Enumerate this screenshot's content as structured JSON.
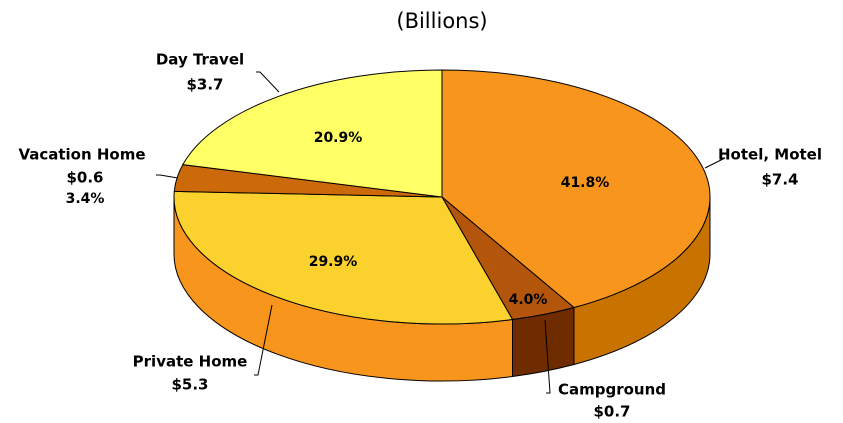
{
  "chart_data": {
    "type": "pie3d",
    "subtitle": "(Billions)",
    "categories": [
      "Hotel, Motel",
      "Campground",
      "Private Home",
      "Vacation Home",
      "Day Travel"
    ],
    "values": [
      7.4,
      0.7,
      5.3,
      0.6,
      3.7
    ],
    "value_labels": [
      "$7.4",
      "$0.7",
      "$5.3",
      "$0.6",
      "$3.7"
    ],
    "percents": [
      41.8,
      4.0,
      29.9,
      3.4,
      20.9
    ],
    "percent_labels": [
      "41.8%",
      "4.0%",
      "29.9%",
      "3.4%",
      "20.9%"
    ],
    "colors": [
      "#f8951d",
      "#b3560c",
      "#fbd12e",
      "#cc6a0a",
      "#ffff66"
    ],
    "side_colors": [
      "#c87200",
      "#6e2c00",
      "#f8951d",
      "#a85400",
      "#d9d94a"
    ]
  }
}
